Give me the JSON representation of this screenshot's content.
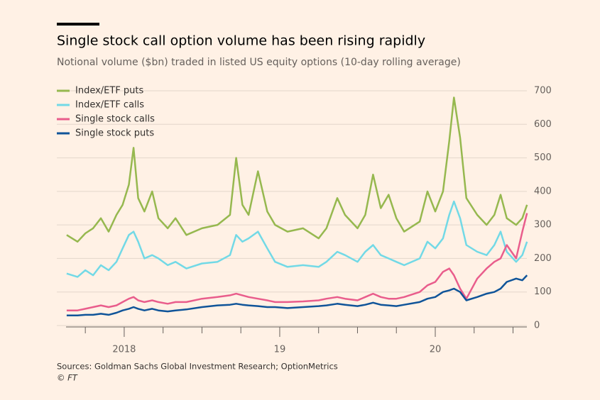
{
  "chart_data": {
    "type": "line",
    "title": "Single stock call option volume has been rising rapidly",
    "subtitle": "Notional volume ($bn) traded in listed US equity options (10-day rolling average)",
    "source": "Sources: Goldman Sachs Global Investment Research; OptionMetrics",
    "credit": "© FT",
    "x": [
      2017.63,
      2017.7,
      2017.75,
      2017.8,
      2017.85,
      2017.9,
      2017.95,
      2017.99,
      2018.03,
      2018.06,
      2018.09,
      2018.13,
      2018.18,
      2018.22,
      2018.28,
      2018.33,
      2018.4,
      2018.5,
      2018.6,
      2018.68,
      2018.72,
      2018.76,
      2018.8,
      2018.86,
      2018.92,
      2018.97,
      2019.05,
      2019.15,
      2019.25,
      2019.3,
      2019.37,
      2019.42,
      2019.5,
      2019.55,
      2019.6,
      2019.65,
      2019.7,
      2019.75,
      2019.8,
      2019.9,
      2019.95,
      2020.0,
      2020.05,
      2020.09,
      2020.12,
      2020.16,
      2020.2,
      2020.27,
      2020.33,
      2020.38,
      2020.42,
      2020.46,
      2020.52,
      2020.56,
      2020.59
    ],
    "series": [
      {
        "name": "Index/ETF puts",
        "color": "#96b84f",
        "values": [
          270,
          250,
          275,
          290,
          320,
          280,
          330,
          360,
          420,
          530,
          380,
          340,
          400,
          320,
          290,
          320,
          270,
          290,
          300,
          330,
          500,
          360,
          330,
          460,
          340,
          300,
          280,
          290,
          260,
          290,
          380,
          330,
          290,
          330,
          450,
          350,
          390,
          320,
          280,
          310,
          400,
          340,
          400,
          550,
          680,
          560,
          380,
          330,
          300,
          330,
          390,
          320,
          300,
          320,
          360
        ]
      },
      {
        "name": "Index/ETF calls",
        "color": "#72d9e6",
        "values": [
          155,
          145,
          165,
          150,
          180,
          165,
          190,
          230,
          270,
          280,
          250,
          200,
          210,
          200,
          180,
          190,
          170,
          185,
          190,
          210,
          270,
          250,
          260,
          280,
          230,
          190,
          175,
          180,
          175,
          190,
          220,
          210,
          190,
          220,
          240,
          210,
          200,
          190,
          180,
          200,
          250,
          230,
          260,
          330,
          370,
          320,
          240,
          220,
          210,
          240,
          280,
          220,
          190,
          210,
          250
        ]
      },
      {
        "name": "Single stock calls",
        "color": "#e95d8c",
        "values": [
          45,
          45,
          50,
          55,
          60,
          55,
          60,
          70,
          80,
          85,
          75,
          70,
          75,
          70,
          65,
          70,
          70,
          80,
          85,
          90,
          95,
          90,
          85,
          80,
          75,
          70,
          70,
          72,
          75,
          80,
          85,
          80,
          75,
          85,
          95,
          85,
          80,
          80,
          85,
          100,
          120,
          130,
          160,
          170,
          150,
          110,
          80,
          140,
          170,
          190,
          200,
          240,
          200,
          280,
          335
        ]
      },
      {
        "name": "Single stock puts",
        "color": "#0f5499",
        "values": [
          30,
          30,
          32,
          32,
          35,
          32,
          38,
          45,
          50,
          55,
          50,
          45,
          50,
          45,
          42,
          45,
          48,
          55,
          60,
          62,
          65,
          62,
          60,
          58,
          55,
          55,
          52,
          55,
          58,
          60,
          65,
          62,
          58,
          62,
          68,
          62,
          60,
          58,
          62,
          70,
          80,
          85,
          100,
          105,
          110,
          100,
          75,
          85,
          95,
          100,
          110,
          130,
          140,
          135,
          150
        ]
      }
    ],
    "xlim": [
      2017.626,
      2020.589
    ],
    "xticks": [
      {
        "value": 2018,
        "label": "2018"
      },
      {
        "value": 2019,
        "label": "19"
      },
      {
        "value": 2020,
        "label": "20"
      }
    ],
    "xminorticks": [
      2017.75,
      2018.25,
      2018.5,
      2018.75,
      2019.25,
      2019.5,
      2019.75,
      2020.25,
      2020.5
    ],
    "ylim": [
      0,
      700
    ],
    "yticks": [
      0,
      100,
      200,
      300,
      400,
      500,
      600,
      700
    ],
    "grid": true,
    "legend": "top-left"
  }
}
